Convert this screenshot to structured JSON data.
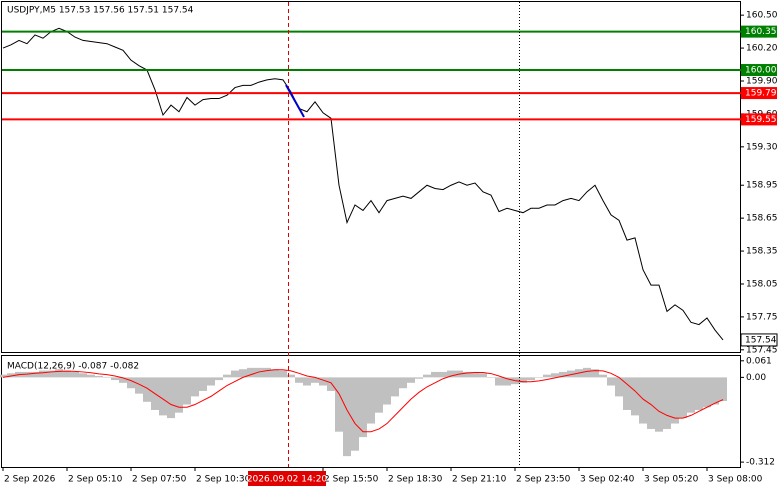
{
  "crosshair_label": "2026.09.02 14:20",
  "chart_data": [
    {
      "type": "line",
      "title": "USDJPY,M5  157.53 157.56 157.51 157.54",
      "color": "#000000",
      "categories": [
        "2 Sep 2026",
        null,
        null,
        null,
        null,
        null,
        null,
        null,
        "2 Sep 05:10",
        null,
        null,
        null,
        null,
        null,
        null,
        null,
        "2 Sep 07:50",
        null,
        null,
        null,
        null,
        null,
        null,
        null,
        "2 Sep 10:30",
        null,
        null,
        null,
        null,
        null,
        null,
        null,
        null,
        null,
        null,
        null,
        null,
        null,
        null,
        null,
        "2 Sep 15:50",
        null,
        null,
        null,
        null,
        null,
        null,
        null,
        "2 Sep 18:30",
        null,
        null,
        null,
        null,
        null,
        null,
        null,
        "2 Sep 21:10",
        null,
        null,
        null,
        null,
        null,
        null,
        null,
        "2 Sep 23:50",
        null,
        null,
        null,
        null,
        null,
        null,
        null,
        "3 Sep 02:40",
        null,
        null,
        null,
        null,
        null,
        null,
        null,
        "3 Sep 05:20",
        null,
        null,
        null,
        null,
        null,
        null,
        null,
        "3 Sep 08:00",
        null,
        null
      ],
      "values": [
        160.2,
        160.23,
        160.27,
        160.24,
        160.32,
        160.29,
        160.35,
        160.38,
        160.35,
        160.3,
        160.27,
        160.26,
        160.25,
        160.24,
        160.21,
        160.18,
        160.09,
        160.04,
        160.0,
        159.82,
        159.59,
        159.68,
        159.62,
        159.75,
        159.68,
        159.73,
        159.74,
        159.74,
        159.77,
        159.84,
        159.86,
        159.86,
        159.89,
        159.91,
        159.92,
        159.91,
        159.8,
        159.65,
        159.62,
        159.71,
        159.61,
        159.56,
        158.95,
        158.61,
        158.77,
        158.72,
        158.81,
        158.7,
        158.81,
        158.83,
        158.85,
        158.83,
        158.89,
        158.95,
        158.92,
        158.91,
        158.95,
        158.98,
        158.95,
        158.97,
        158.89,
        158.86,
        158.71,
        158.74,
        158.72,
        158.7,
        158.74,
        158.74,
        158.77,
        158.77,
        158.81,
        158.83,
        158.81,
        158.89,
        158.95,
        158.81,
        158.68,
        158.63,
        158.45,
        158.47,
        158.18,
        158.04,
        158.04,
        157.8,
        157.86,
        157.81,
        157.7,
        157.68,
        157.74,
        157.63,
        157.54
      ],
      "ylim": [
        157.43,
        160.62
      ],
      "yticks": [
        {
          "value": 160.5,
          "label": "160.50"
        },
        {
          "value": 160.2,
          "label": "160.20"
        },
        {
          "value": 159.9,
          "label": "159.90"
        },
        {
          "value": 159.6,
          "label": "159.60"
        },
        {
          "value": 159.3,
          "label": "159.30"
        },
        158.95,
        158.65,
        158.35,
        {
          "value": 158.05,
          "label": "158.05"
        },
        157.75,
        157.45
      ],
      "levels": [
        {
          "value": 160.35,
          "color": "#008000"
        },
        {
          "value": 160,
          "label": "160.00",
          "color": "#008000"
        },
        {
          "value": 159.79,
          "color": "#ff0000"
        },
        {
          "value": 159.55,
          "color": "#ff0000"
        }
      ],
      "last_price": 157.54
    },
    {
      "type": "macd",
      "title": "MACD(12,26,9) -0.087 -0.082",
      "series": [
        {
          "type": "bar",
          "color": "#c0c0c0",
          "values": [
            0.01,
            0.015,
            0.02,
            0.02,
            0.02,
            0.025,
            0.025,
            0.03,
            0.025,
            0.02,
            0.015,
            0.01,
            0.005,
            0.0,
            -0.01,
            -0.02,
            -0.04,
            -0.06,
            -0.09,
            -0.12,
            -0.14,
            -0.15,
            -0.13,
            -0.1,
            -0.07,
            -0.05,
            -0.03,
            -0.01,
            0.01,
            0.025,
            0.03,
            0.035,
            0.035,
            0.035,
            0.03,
            0.025,
            0.01,
            -0.02,
            -0.03,
            -0.02,
            -0.03,
            -0.05,
            -0.2,
            -0.29,
            -0.27,
            -0.22,
            -0.17,
            -0.13,
            -0.1,
            -0.07,
            -0.04,
            -0.02,
            -0.005,
            0.01,
            0.02,
            0.02,
            0.025,
            0.025,
            0.02,
            0.02,
            0.015,
            0.0,
            -0.03,
            -0.03,
            -0.025,
            -0.02,
            -0.01,
            0.0,
            0.01,
            0.015,
            0.02,
            0.025,
            0.03,
            0.035,
            0.03,
            0.01,
            -0.03,
            -0.07,
            -0.12,
            -0.14,
            -0.17,
            -0.19,
            -0.2,
            -0.19,
            -0.17,
            -0.15,
            -0.13,
            -0.12,
            -0.11,
            -0.1,
            -0.087
          ]
        },
        {
          "type": "line",
          "color": "#ff0000",
          "values": [
            0.0,
            0.005,
            0.01,
            0.012,
            0.015,
            0.017,
            0.02,
            0.022,
            0.023,
            0.022,
            0.02,
            0.017,
            0.013,
            0.01,
            0.005,
            -0.002,
            -0.012,
            -0.025,
            -0.04,
            -0.06,
            -0.08,
            -0.1,
            -0.11,
            -0.11,
            -0.1,
            -0.085,
            -0.07,
            -0.05,
            -0.03,
            -0.015,
            0.0,
            0.01,
            0.02,
            0.025,
            0.028,
            0.028,
            0.024,
            0.015,
            0.005,
            0.0,
            -0.01,
            -0.02,
            -0.06,
            -0.12,
            -0.17,
            -0.2,
            -0.2,
            -0.19,
            -0.17,
            -0.14,
            -0.11,
            -0.08,
            -0.055,
            -0.035,
            -0.02,
            -0.005,
            0.005,
            0.012,
            0.016,
            0.018,
            0.018,
            0.014,
            0.005,
            -0.005,
            -0.012,
            -0.016,
            -0.016,
            -0.013,
            -0.008,
            -0.002,
            0.004,
            0.01,
            0.016,
            0.022,
            0.025,
            0.024,
            0.015,
            0.0,
            -0.025,
            -0.05,
            -0.08,
            -0.1,
            -0.125,
            -0.14,
            -0.15,
            -0.15,
            -0.14,
            -0.125,
            -0.11,
            -0.095,
            -0.082
          ]
        }
      ],
      "ylim": [
        -0.33,
        0.075
      ],
      "yticks": [
        0.061,
        {
          "value": 0,
          "label": "0.00"
        },
        -0.312
      ]
    }
  ]
}
